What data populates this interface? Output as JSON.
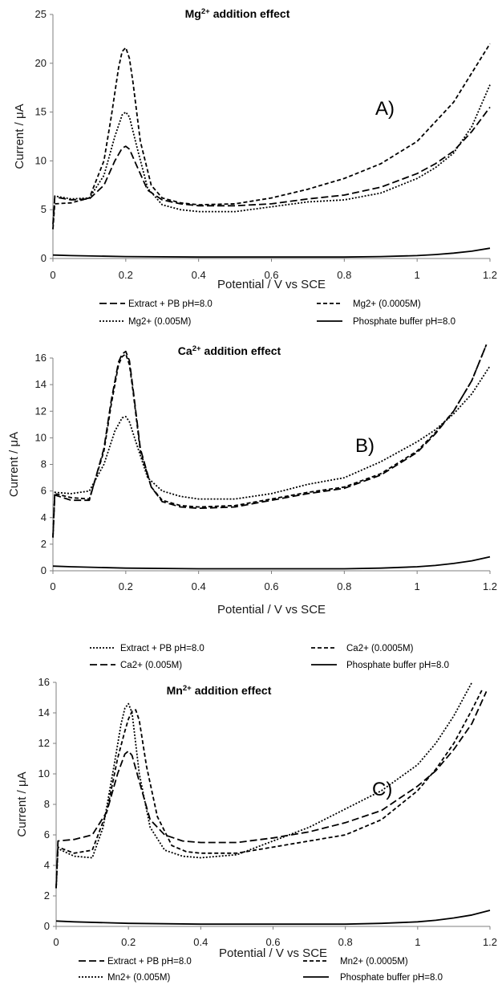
{
  "chart_data": [
    {
      "type": "line",
      "title": "addition effect",
      "title_ion": "Mg",
      "title_charge": "2+",
      "panel_label": "A)",
      "xlabel": "Potential / V vs SCE",
      "ylabel": "Current  / μA",
      "xlim": [
        0,
        1.2
      ],
      "ylim": [
        0,
        25
      ],
      "x_ticks": [
        "0",
        "0.2",
        "0.4",
        "0.6",
        "0.8",
        "1",
        "1.2"
      ],
      "y_ticks": [
        "0",
        "5",
        "10",
        "15",
        "20",
        "25"
      ],
      "grid": false,
      "legend_position": "bottom",
      "series": [
        {
          "name": "Extract + PB pH=8.0",
          "dash": "long-dash",
          "x": [
            0,
            0.005,
            0.05,
            0.1,
            0.14,
            0.17,
            0.19,
            0.2,
            0.21,
            0.23,
            0.26,
            0.3,
            0.35,
            0.4,
            0.5,
            0.6,
            0.7,
            0.8,
            0.9,
            1.0,
            1.05,
            1.1,
            1.15,
            1.2
          ],
          "y": [
            3.5,
            6.3,
            6.0,
            6.1,
            7.5,
            10.0,
            11.3,
            11.5,
            11.2,
            9.5,
            7.0,
            6.0,
            5.6,
            5.4,
            5.4,
            5.6,
            6.1,
            6.5,
            7.3,
            8.7,
            9.7,
            11.0,
            13.0,
            15.5
          ]
        },
        {
          "name": "Mg2+ (0.0005M)",
          "dash": "short-dash",
          "x": [
            0,
            0.005,
            0.05,
            0.1,
            0.14,
            0.16,
            0.18,
            0.19,
            0.2,
            0.21,
            0.22,
            0.24,
            0.27,
            0.3,
            0.35,
            0.4,
            0.5,
            0.6,
            0.7,
            0.8,
            0.9,
            1.0,
            1.1,
            1.2
          ],
          "y": [
            3.0,
            5.6,
            5.7,
            6.2,
            10.0,
            14.5,
            19.5,
            21.2,
            21.6,
            20.5,
            18.0,
            12.0,
            7.5,
            6.2,
            5.7,
            5.5,
            5.6,
            6.2,
            7.1,
            8.2,
            9.7,
            12.0,
            16.0,
            22.0
          ]
        },
        {
          "name": "Mg2+ (0.005M)",
          "dash": "dotted",
          "x": [
            0,
            0.005,
            0.05,
            0.1,
            0.14,
            0.17,
            0.19,
            0.2,
            0.21,
            0.23,
            0.26,
            0.3,
            0.35,
            0.4,
            0.5,
            0.6,
            0.7,
            0.8,
            0.9,
            1.0,
            1.05,
            1.1,
            1.15,
            1.2
          ],
          "y": [
            3.0,
            6.4,
            6.1,
            6.2,
            8.5,
            12.5,
            14.7,
            15.0,
            14.5,
            11.5,
            7.2,
            5.5,
            5.0,
            4.8,
            4.8,
            5.3,
            5.8,
            6.0,
            6.7,
            8.2,
            9.3,
            10.8,
            13.5,
            17.8
          ]
        },
        {
          "name": "Phosphate buffer pH=8.0",
          "dash": "solid",
          "x": [
            0,
            0.05,
            0.2,
            0.4,
            0.6,
            0.8,
            0.9,
            1.0,
            1.05,
            1.1,
            1.15,
            1.2
          ],
          "y": [
            0.35,
            0.3,
            0.2,
            0.15,
            0.15,
            0.15,
            0.2,
            0.3,
            0.4,
            0.55,
            0.75,
            1.05
          ]
        }
      ]
    },
    {
      "type": "line",
      "title": "addition effect",
      "title_ion": "Ca",
      "title_charge": "2+",
      "panel_label": "B)",
      "xlabel": "Potential / V vs SCE",
      "ylabel": "Current  / μA",
      "xlim": [
        0,
        1.2
      ],
      "ylim": [
        0,
        16
      ],
      "x_ticks": [
        "0",
        "0.2",
        "0.4",
        "0.6",
        "0.8",
        "1",
        "1.2"
      ],
      "y_ticks": [
        "0",
        "2",
        "4",
        "6",
        "8",
        "10",
        "12",
        "14",
        "16"
      ],
      "grid": false,
      "legend_position": "bottom",
      "series": [
        {
          "name": "Extract + PB pH=8.0",
          "dash": "dotted",
          "x": [
            0,
            0.005,
            0.05,
            0.1,
            0.14,
            0.17,
            0.19,
            0.2,
            0.21,
            0.23,
            0.26,
            0.3,
            0.35,
            0.4,
            0.5,
            0.6,
            0.7,
            0.8,
            0.9,
            1.0,
            1.05,
            1.1,
            1.15,
            1.2
          ],
          "y": [
            2.5,
            5.9,
            5.8,
            6.0,
            8.0,
            10.5,
            11.5,
            11.6,
            11.2,
            9.5,
            7.0,
            6.0,
            5.6,
            5.4,
            5.4,
            5.8,
            6.5,
            7.0,
            8.2,
            9.7,
            10.6,
            11.8,
            13.3,
            15.4
          ]
        },
        {
          "name": "Ca2+ (0.0005M)",
          "dash": "short-dash",
          "x": [
            0,
            0.005,
            0.05,
            0.1,
            0.14,
            0.16,
            0.18,
            0.19,
            0.2,
            0.21,
            0.22,
            0.24,
            0.27,
            0.3,
            0.35,
            0.4,
            0.5,
            0.6,
            0.7,
            0.8,
            0.9,
            1.0,
            1.05,
            1.1,
            1.15,
            1.19
          ],
          "y": [
            2.5,
            5.8,
            5.5,
            5.4,
            9.0,
            12.5,
            15.5,
            16.1,
            16.3,
            15.5,
            13.5,
            9.0,
            6.3,
            5.3,
            4.9,
            4.8,
            4.9,
            5.4,
            5.9,
            6.3,
            7.3,
            9.0,
            10.4,
            12.0,
            14.3,
            17.0
          ]
        },
        {
          "name": "Ca2+ (0.005M)",
          "dash": "long-dash",
          "x": [
            0,
            0.005,
            0.05,
            0.1,
            0.14,
            0.16,
            0.18,
            0.19,
            0.2,
            0.21,
            0.22,
            0.24,
            0.27,
            0.3,
            0.35,
            0.4,
            0.5,
            0.6,
            0.7,
            0.8,
            0.9,
            1.0,
            1.05,
            1.1,
            1.15,
            1.19
          ],
          "y": [
            2.5,
            5.7,
            5.3,
            5.3,
            9.2,
            12.8,
            15.7,
            16.3,
            16.5,
            15.8,
            13.7,
            9.2,
            6.3,
            5.2,
            4.8,
            4.7,
            4.8,
            5.3,
            5.8,
            6.2,
            7.2,
            8.9,
            10.3,
            12.0,
            14.3,
            17.0
          ]
        },
        {
          "name": "Phosphate buffer pH=8.0",
          "dash": "solid",
          "x": [
            0,
            0.05,
            0.2,
            0.4,
            0.6,
            0.8,
            0.9,
            1.0,
            1.05,
            1.1,
            1.15,
            1.2
          ],
          "y": [
            0.35,
            0.3,
            0.2,
            0.15,
            0.15,
            0.15,
            0.2,
            0.3,
            0.4,
            0.55,
            0.75,
            1.05
          ]
        }
      ]
    },
    {
      "type": "line",
      "title": "addition effect",
      "title_ion": "Mn",
      "title_charge": "2+",
      "panel_label": "C)",
      "xlabel": "Potential / V vs SCE",
      "ylabel": "Current  / μA",
      "xlim": [
        0,
        1.2
      ],
      "ylim": [
        0,
        16
      ],
      "x_ticks": [
        "0",
        "0.2",
        "0.4",
        "0.6",
        "0.8",
        "1",
        "1.2"
      ],
      "y_ticks": [
        "0",
        "2",
        "4",
        "6",
        "8",
        "10",
        "12",
        "14",
        "16"
      ],
      "grid": false,
      "legend_position": "bottom",
      "series": [
        {
          "name": "Extract + PB pH=8.0",
          "dash": "long-dash",
          "x": [
            0,
            0.005,
            0.05,
            0.1,
            0.14,
            0.17,
            0.19,
            0.2,
            0.21,
            0.23,
            0.26,
            0.3,
            0.35,
            0.4,
            0.5,
            0.6,
            0.7,
            0.8,
            0.9,
            1.0,
            1.05,
            1.1,
            1.15,
            1.19
          ],
          "y": [
            2.5,
            5.6,
            5.7,
            6.0,
            7.5,
            10.0,
            11.3,
            11.5,
            11.2,
            9.5,
            7.0,
            6.0,
            5.6,
            5.5,
            5.5,
            5.8,
            6.2,
            6.8,
            7.6,
            9.2,
            10.2,
            11.6,
            13.3,
            15.4
          ]
        },
        {
          "name": "Mn2+ (0.0005M)",
          "dash": "short-dash",
          "x": [
            0,
            0.005,
            0.05,
            0.1,
            0.14,
            0.17,
            0.19,
            0.2,
            0.21,
            0.22,
            0.23,
            0.25,
            0.28,
            0.32,
            0.36,
            0.4,
            0.5,
            0.6,
            0.7,
            0.8,
            0.9,
            1.0,
            1.05,
            1.1,
            1.15,
            1.18
          ],
          "y": [
            2.5,
            5.2,
            4.8,
            5.0,
            7.5,
            11.0,
            12.8,
            13.6,
            14.1,
            14.2,
            13.5,
            10.5,
            7.2,
            5.3,
            4.9,
            4.8,
            4.8,
            5.2,
            5.6,
            6.0,
            7.0,
            8.9,
            10.3,
            12.0,
            14.2,
            15.6
          ]
        },
        {
          "name": "Mn2+ (0.005M)",
          "dash": "dotted",
          "x": [
            0,
            0.005,
            0.05,
            0.1,
            0.13,
            0.16,
            0.18,
            0.19,
            0.2,
            0.21,
            0.23,
            0.26,
            0.3,
            0.35,
            0.4,
            0.5,
            0.6,
            0.7,
            0.8,
            0.9,
            1.0,
            1.05,
            1.1,
            1.15
          ],
          "y": [
            2.5,
            5.1,
            4.6,
            4.5,
            6.5,
            10.5,
            13.3,
            14.3,
            14.6,
            14.0,
            10.0,
            6.5,
            5.0,
            4.6,
            4.5,
            4.7,
            5.6,
            6.5,
            7.7,
            8.9,
            10.6,
            12.0,
            13.8,
            16.0
          ]
        },
        {
          "name": "Phosphate buffer pH=8.0",
          "dash": "solid",
          "x": [
            0,
            0.05,
            0.2,
            0.4,
            0.6,
            0.8,
            0.9,
            1.0,
            1.05,
            1.1,
            1.15,
            1.2
          ],
          "y": [
            0.35,
            0.3,
            0.2,
            0.15,
            0.15,
            0.15,
            0.2,
            0.3,
            0.4,
            0.55,
            0.75,
            1.05
          ]
        }
      ]
    }
  ]
}
